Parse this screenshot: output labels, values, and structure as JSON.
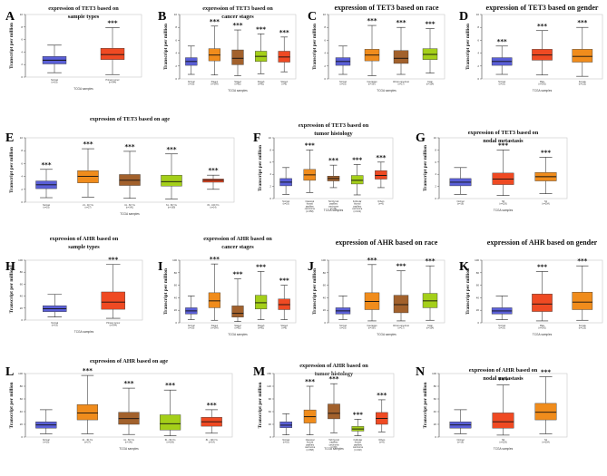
{
  "chart_data": [
    {
      "label": "A",
      "type": "box",
      "title": [
        "expression of TET3 based on",
        "sample types"
      ],
      "ylabel": "Transcript per million",
      "xlabel": "TCGA samples",
      "ylim": [
        0,
        10
      ],
      "yticks": [
        0,
        2,
        4,
        6,
        8,
        10
      ],
      "categories": [
        {
          "name": "Normal",
          "n": "(n=19)",
          "min": 0.7,
          "q1": 2.1,
          "median": 2.7,
          "q3": 3.3,
          "max": 5.1,
          "color": "#5a5fd7",
          "sig": ""
        },
        {
          "name": "Primary tumor",
          "n": "(n=344)",
          "min": 0.4,
          "q1": 2.8,
          "median": 3.6,
          "q3": 4.6,
          "max": 7.9,
          "color": "#ef4a23",
          "sig": "***"
        }
      ]
    },
    {
      "label": "B",
      "type": "box",
      "title": [
        "expression of TET3 based on",
        "cancer stages"
      ],
      "ylabel": "Transcript per million",
      "xlabel": "TCGA samples",
      "ylim": [
        0,
        10
      ],
      "yticks": [
        0,
        2,
        4,
        6,
        8,
        10
      ],
      "categories": [
        {
          "name": "Normal",
          "n": "(n=19)",
          "min": 0.7,
          "q1": 2.1,
          "median": 2.7,
          "q3": 3.3,
          "max": 5.1,
          "color": "#5a5fd7",
          "sig": ""
        },
        {
          "name": "Stage1",
          "n": "(n=164)",
          "min": 0.6,
          "q1": 2.8,
          "median": 3.7,
          "q3": 4.7,
          "max": 8.2,
          "color": "#f08c1c",
          "sig": "***"
        },
        {
          "name": "Stage2",
          "n": "(n=82)",
          "min": 0.5,
          "q1": 2.2,
          "median": 3.2,
          "q3": 4.5,
          "max": 7.6,
          "color": "#a2612c",
          "sig": "***"
        },
        {
          "name": "Stage3",
          "n": "(n=81)",
          "min": 0.8,
          "q1": 2.7,
          "median": 3.5,
          "q3": 4.3,
          "max": 7.0,
          "color": "#a4cf19",
          "sig": "***"
        },
        {
          "name": "Stage4",
          "n": "(n=6)",
          "min": 1.1,
          "q1": 2.6,
          "median": 3.4,
          "q3": 4.3,
          "max": 6.5,
          "color": "#ef4a23",
          "sig": "***"
        }
      ]
    },
    {
      "label": "C",
      "type": "box",
      "title": [
        "expression of TET3 based on race"
      ],
      "ylabel": "Transcript per million",
      "xlabel": "TCGA samples",
      "ylim": [
        0,
        10
      ],
      "yticks": [
        0,
        2,
        4,
        6,
        8,
        10
      ],
      "categories": [
        {
          "name": "Normal",
          "n": "(n=19)",
          "min": 0.7,
          "q1": 2.1,
          "median": 2.7,
          "q3": 3.3,
          "max": 5.1,
          "color": "#5a5fd7",
          "sig": ""
        },
        {
          "name": "Caucasian",
          "n": "(n=167)",
          "min": 0.5,
          "q1": 2.8,
          "median": 3.7,
          "q3": 4.6,
          "max": 8.3,
          "color": "#f08c1c",
          "sig": "***"
        },
        {
          "name": "African-american",
          "n": "(n=17)",
          "min": 0.7,
          "q1": 2.4,
          "median": 3.2,
          "q3": 4.4,
          "max": 8.0,
          "color": "#a2612c",
          "sig": "***"
        },
        {
          "name": "Asian",
          "n": "(n=154)",
          "min": 0.9,
          "q1": 3.0,
          "median": 3.8,
          "q3": 4.7,
          "max": 7.8,
          "color": "#a4cf19",
          "sig": "***"
        }
      ]
    },
    {
      "label": "D",
      "type": "box",
      "title": [
        "expression of TET3 based on gender"
      ],
      "ylabel": "Transcript per million",
      "xlabel": "TCGA samples",
      "ylim": [
        0,
        10
      ],
      "yticks": [
        0,
        2,
        4,
        6,
        8,
        10
      ],
      "categories": [
        {
          "name": "Normal",
          "n": "(n=19)",
          "min": 0.7,
          "q1": 2.1,
          "median": 2.7,
          "q3": 3.3,
          "max": 5.1,
          "color": "#5a5fd7",
          "sig": "***"
        },
        {
          "name": "Male",
          "n": "(n=242)",
          "min": 0.6,
          "q1": 2.9,
          "median": 3.7,
          "q3": 4.6,
          "max": 7.5,
          "color": "#ef4a23",
          "sig": "***"
        },
        {
          "name": "Female",
          "n": "(n=115)",
          "min": 0.4,
          "q1": 2.6,
          "median": 3.5,
          "q3": 4.6,
          "max": 8.0,
          "color": "#f08c1c",
          "sig": "***"
        }
      ]
    },
    {
      "label": "E",
      "type": "box",
      "title": [
        "expression of TET3 based on age"
      ],
      "ylabel": "Transcript per million",
      "xlabel": "TCGA samples",
      "ylim": [
        0,
        10
      ],
      "yticks": [
        0,
        2,
        4,
        6,
        8,
        10
      ],
      "categories": [
        {
          "name": "Normal",
          "n": "(n=19)",
          "min": 0.7,
          "q1": 2.1,
          "median": 2.7,
          "q3": 3.3,
          "max": 5.1,
          "color": "#5a5fd7",
          "sig": "***"
        },
        {
          "name": "21 - 40 Yrs",
          "n": "(n=27)",
          "min": 0.8,
          "q1": 3.0,
          "median": 4.0,
          "q3": 4.9,
          "max": 8.3,
          "color": "#f08c1c",
          "sig": "***"
        },
        {
          "name": "41 - 60 Yrs",
          "n": "(n=141)",
          "min": 0.6,
          "q1": 2.6,
          "median": 3.4,
          "q3": 4.3,
          "max": 7.9,
          "color": "#a2612c",
          "sig": "***"
        },
        {
          "name": "61 - 80 Yrs",
          "n": "(n=169)",
          "min": 0.5,
          "q1": 2.5,
          "median": 3.2,
          "q3": 4.2,
          "max": 7.5,
          "color": "#a4cf19",
          "sig": "***"
        },
        {
          "name": "81 - 100 Yrs",
          "n": "(n=14)",
          "min": 2.0,
          "q1": 3.1,
          "median": 3.4,
          "q3": 3.6,
          "max": 4.2,
          "color": "#ef4a23",
          "sig": "***"
        }
      ]
    },
    {
      "label": "F",
      "type": "box",
      "title": [
        "expression of TET3 based on",
        "tumor histology"
      ],
      "ylabel": "Transcript per million",
      "xlabel": "TCGA samples",
      "ylim": [
        0,
        10
      ],
      "yticks": [
        0,
        2,
        4,
        6,
        8,
        10
      ],
      "categories": [
        {
          "name": "Normal",
          "n": "(n=19)",
          "min": 0.7,
          "q1": 2.1,
          "median": 2.7,
          "q3": 3.3,
          "max": 5.1,
          "color": "#5a5fd7",
          "sig": ""
        },
        {
          "name": "Classical thyroid papillary carcinoma",
          "n": "(n=358)",
          "min": 1.0,
          "q1": 3.0,
          "median": 3.9,
          "q3": 4.8,
          "max": 8.0,
          "color": "#f08c1c",
          "sig": "***"
        },
        {
          "name": "Tall thyroid papillary carcinoma",
          "n": "(n=36)",
          "min": 1.8,
          "q1": 2.9,
          "median": 3.3,
          "q3": 3.7,
          "max": 5.5,
          "color": "#a2612c",
          "sig": "***"
        },
        {
          "name": "Follicular thyroid papillary carcinoma",
          "n": "(n=102)",
          "min": 0.6,
          "q1": 2.4,
          "median": 3.0,
          "q3": 3.8,
          "max": 5.6,
          "color": "#a4cf19",
          "sig": "***"
        },
        {
          "name": "Others",
          "n": "(n=9)",
          "min": 1.8,
          "q1": 3.2,
          "median": 3.8,
          "q3": 4.6,
          "max": 6.0,
          "color": "#ef4a23",
          "sig": "***"
        }
      ]
    },
    {
      "label": "G",
      "type": "box",
      "title": [
        "expression of TET3 based on",
        "nodal metastasis"
      ],
      "ylabel": "Transcript per million",
      "xlabel": "TCGA samples",
      "ylim": [
        0,
        10
      ],
      "yticks": [
        0,
        2,
        4,
        6,
        8,
        10
      ],
      "categories": [
        {
          "name": "Normal",
          "n": "(n=19)",
          "min": 0.7,
          "q1": 2.1,
          "median": 2.7,
          "q3": 3.3,
          "max": 5.1,
          "color": "#5a5fd7",
          "sig": ""
        },
        {
          "name": "N0",
          "n": "(n=229)",
          "min": 0.5,
          "q1": 2.3,
          "median": 3.2,
          "q3": 4.2,
          "max": 8.0,
          "color": "#ef4a23",
          "sig": "***"
        },
        {
          "name": "N1",
          "n": "(n=254)",
          "min": 0.8,
          "q1": 2.9,
          "median": 3.6,
          "q3": 4.3,
          "max": 6.8,
          "color": "#f08c1c",
          "sig": "***"
        }
      ]
    },
    {
      "label": "H",
      "type": "box",
      "title": [
        "expression of AHR based on",
        "sample types"
      ],
      "ylabel": "Transcript per million",
      "xlabel": "TCGA samples",
      "ylim": [
        0,
        100
      ],
      "yticks": [
        0,
        20,
        40,
        60,
        80,
        100
      ],
      "categories": [
        {
          "name": "Normal",
          "n": "(n=19)",
          "min": 5,
          "q1": 14,
          "median": 19,
          "q3": 24,
          "max": 43,
          "color": "#5a5fd7",
          "sig": ""
        },
        {
          "name": "Primary tumor",
          "n": "(n=344)",
          "min": 3,
          "q1": 18,
          "median": 30,
          "q3": 47,
          "max": 93,
          "color": "#ef4a23",
          "sig": "***"
        }
      ]
    },
    {
      "label": "I",
      "type": "box",
      "title": [
        "expression of AHR based on",
        "cancer stages"
      ],
      "ylabel": "Transcript per million",
      "xlabel": "TCGA samples",
      "ylim": [
        0,
        100
      ],
      "yticks": [
        0,
        20,
        40,
        60,
        80,
        100
      ],
      "categories": [
        {
          "name": "Normal",
          "n": "(n=19)",
          "min": 5,
          "q1": 14,
          "median": 19,
          "q3": 24,
          "max": 43,
          "color": "#5a5fd7",
          "sig": ""
        },
        {
          "name": "Stage1",
          "n": "(n=164)",
          "min": 4,
          "q1": 24,
          "median": 35,
          "q3": 48,
          "max": 94,
          "color": "#f08c1c",
          "sig": "***"
        },
        {
          "name": "Stage2",
          "n": "(n=82)",
          "min": 2,
          "q1": 9,
          "median": 15,
          "q3": 27,
          "max": 70,
          "color": "#a2612c",
          "sig": "***"
        },
        {
          "name": "Stage3",
          "n": "(n=81)",
          "min": 5,
          "q1": 22,
          "median": 32,
          "q3": 44,
          "max": 82,
          "color": "#a4cf19",
          "sig": "***"
        },
        {
          "name": "Stage4",
          "n": "(n=6)",
          "min": 5,
          "q1": 21,
          "median": 29,
          "q3": 38,
          "max": 60,
          "color": "#ef4a23",
          "sig": "***"
        }
      ]
    },
    {
      "label": "J",
      "type": "box",
      "title": [
        "expression of AHR based on race"
      ],
      "ylabel": "Transcript per million",
      "xlabel": "TCGA samples",
      "ylim": [
        0,
        100
      ],
      "yticks": [
        0,
        20,
        40,
        60,
        80,
        100
      ],
      "categories": [
        {
          "name": "Normal",
          "n": "(n=19)",
          "min": 5,
          "q1": 14,
          "median": 19,
          "q3": 24,
          "max": 43,
          "color": "#5a5fd7",
          "sig": ""
        },
        {
          "name": "Caucasian",
          "n": "(n=167)",
          "min": 3,
          "q1": 21,
          "median": 34,
          "q3": 48,
          "max": 93,
          "color": "#f08c1c",
          "sig": "***"
        },
        {
          "name": "African-american",
          "n": "(n=17)",
          "min": 3,
          "q1": 16,
          "median": 29,
          "q3": 44,
          "max": 83,
          "color": "#a2612c",
          "sig": "***"
        },
        {
          "name": "Asian",
          "n": "(n=154)",
          "min": 4,
          "q1": 24,
          "median": 35,
          "q3": 47,
          "max": 91,
          "color": "#a4cf19",
          "sig": "***"
        }
      ]
    },
    {
      "label": "K",
      "type": "box",
      "title": [
        "expression of AHR based on gender"
      ],
      "ylabel": "Transcript per million",
      "xlabel": "TCGA samples",
      "ylim": [
        0,
        100
      ],
      "yticks": [
        0,
        20,
        40,
        60,
        80,
        100
      ],
      "categories": [
        {
          "name": "Normal",
          "n": "(n=19)",
          "min": 5,
          "q1": 14,
          "median": 19,
          "q3": 24,
          "max": 43,
          "color": "#5a5fd7",
          "sig": ""
        },
        {
          "name": "Male",
          "n": "(n=242)",
          "min": 3,
          "q1": 18,
          "median": 30,
          "q3": 46,
          "max": 82,
          "color": "#ef4a23",
          "sig": "***"
        },
        {
          "name": "Female",
          "n": "(n=115)",
          "min": 4,
          "q1": 21,
          "median": 33,
          "q3": 49,
          "max": 91,
          "color": "#f08c1c",
          "sig": "***"
        }
      ]
    },
    {
      "label": "L",
      "type": "box",
      "title": [
        "expression of AHR based on age"
      ],
      "ylabel": "Transcript per million",
      "xlabel": "TCGA samples",
      "ylim": [
        0,
        100
      ],
      "yticks": [
        0,
        20,
        40,
        60,
        80,
        100
      ],
      "categories": [
        {
          "name": "Normal",
          "n": "(n=19)",
          "min": 5,
          "q1": 14,
          "median": 19,
          "q3": 24,
          "max": 43,
          "color": "#5a5fd7",
          "sig": ""
        },
        {
          "name": "21 - 40 Yrs",
          "n": "(n=27)",
          "min": 5,
          "q1": 27,
          "median": 38,
          "q3": 51,
          "max": 97,
          "color": "#f08c1c",
          "sig": "***"
        },
        {
          "name": "41 - 60 Yrs",
          "n": "(n=141)",
          "min": 4,
          "q1": 20,
          "median": 29,
          "q3": 39,
          "max": 77,
          "color": "#a2612c",
          "sig": "***"
        },
        {
          "name": "61 - 80 Yrs",
          "n": "(n=169)",
          "min": 2,
          "q1": 11,
          "median": 21,
          "q3": 35,
          "max": 74,
          "color": "#a4cf19",
          "sig": "***"
        },
        {
          "name": "81 - 100 Yrs",
          "n": "(n=14)",
          "min": 6,
          "q1": 17,
          "median": 24,
          "q3": 31,
          "max": 43,
          "color": "#ef4a23",
          "sig": "***"
        }
      ]
    },
    {
      "label": "M",
      "type": "box",
      "title": [
        "expression of AHR based on",
        "tumor histology"
      ],
      "ylabel": "Transcript per million",
      "xlabel": "TCGA samples",
      "ylim": [
        0,
        150
      ],
      "yticks": [
        0,
        30,
        60,
        90,
        120,
        150
      ],
      "categories": [
        {
          "name": "Normal",
          "n": "(n=19)",
          "min": 5,
          "q1": 22,
          "median": 28,
          "q3": 36,
          "max": 55,
          "color": "#5a5fd7",
          "sig": ""
        },
        {
          "name": "Classical thyroid papillary carcinoma",
          "n": "(n=358)",
          "min": 5,
          "q1": 33,
          "median": 48,
          "q3": 64,
          "max": 120,
          "color": "#f08c1c",
          "sig": "***"
        },
        {
          "name": "Tall thyroid papillary carcinoma",
          "n": "(n=36)",
          "min": 10,
          "q1": 43,
          "median": 56,
          "q3": 78,
          "max": 126,
          "color": "#a2612c",
          "sig": "***"
        },
        {
          "name": "Follicular thyroid papillary carcinoma",
          "n": "(n=102)",
          "min": 3,
          "q1": 14,
          "median": 19,
          "q3": 25,
          "max": 42,
          "color": "#a4cf19",
          "sig": "***"
        },
        {
          "name": "Others",
          "n": "(n=9)",
          "min": 12,
          "q1": 30,
          "median": 44,
          "q3": 58,
          "max": 88,
          "color": "#ef4a23",
          "sig": "***"
        }
      ]
    },
    {
      "label": "N",
      "type": "box",
      "title": [
        "expression of AHR based on",
        "nodal metastasis"
      ],
      "ylabel": "Transcript per million",
      "xlabel": "TCGA samples",
      "ylim": [
        0,
        100
      ],
      "yticks": [
        0,
        20,
        40,
        60,
        80,
        100
      ],
      "categories": [
        {
          "name": "Normal",
          "n": "(n=19)",
          "min": 5,
          "q1": 14,
          "median": 19,
          "q3": 24,
          "max": 43,
          "color": "#5a5fd7",
          "sig": ""
        },
        {
          "name": "N0",
          "n": "(n=229)",
          "min": 3,
          "q1": 14,
          "median": 24,
          "q3": 38,
          "max": 82,
          "color": "#ef4a23",
          "sig": "***"
        },
        {
          "name": "N1",
          "n": "(n=254)",
          "min": 5,
          "q1": 27,
          "median": 39,
          "q3": 53,
          "max": 95,
          "color": "#f08c1c",
          "sig": "***"
        }
      ]
    }
  ]
}
